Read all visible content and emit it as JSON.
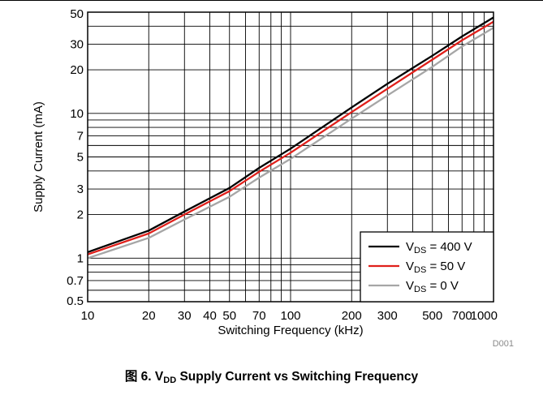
{
  "chart_data": {
    "type": "line",
    "title": "",
    "xlabel": "Switching Frequency (kHz)",
    "ylabel": "Supply Current (mA)",
    "x_scale": "log",
    "y_scale": "log",
    "xlim": [
      10,
      1000
    ],
    "ylim": [
      0.5,
      50
    ],
    "x_ticks": [
      10,
      20,
      30,
      40,
      50,
      70,
      100,
      200,
      300,
      500,
      700,
      1000
    ],
    "x_tick_labels": [
      "10",
      "20",
      "30",
      "40",
      "50",
      "70",
      "100",
      "200",
      "300",
      "500",
      "700",
      "1000"
    ],
    "y_ticks": [
      0.5,
      0.7,
      1,
      2,
      3,
      5,
      7,
      10,
      20,
      30,
      50
    ],
    "y_tick_labels": [
      "0.5",
      "0.7",
      "1",
      "2",
      "3",
      "5",
      "7",
      "10",
      "20",
      "30",
      "50"
    ],
    "grid": true,
    "legend_position": "bottom-right",
    "series": [
      {
        "name_main": "V",
        "name_sub": "DS",
        "name_rest": " = 400 V",
        "color": "#000000",
        "x": [
          10,
          20,
          30,
          50,
          70,
          100,
          200,
          300,
          500,
          700,
          1000
        ],
        "y": [
          1.1,
          1.55,
          2.1,
          3.05,
          4.2,
          5.7,
          11,
          16,
          25,
          34,
          46
        ]
      },
      {
        "name_main": "V",
        "name_sub": "DS",
        "name_rest": " = 50 V",
        "color": "#e0201b",
        "x": [
          10,
          20,
          30,
          50,
          70,
          100,
          200,
          300,
          500,
          700,
          1000
        ],
        "y": [
          1.06,
          1.48,
          2.0,
          2.9,
          3.95,
          5.35,
          10.2,
          14.8,
          23.5,
          32,
          43
        ]
      },
      {
        "name_main": "V",
        "name_sub": "DS",
        "name_rest": " = 0 V",
        "color": "#a6a6a6",
        "x": [
          10,
          20,
          30,
          50,
          70,
          100,
          200,
          300,
          500,
          700,
          1000
        ],
        "y": [
          1.0,
          1.38,
          1.85,
          2.65,
          3.6,
          4.85,
          9.2,
          13.3,
          21,
          29,
          39
        ]
      }
    ]
  },
  "figure_id": "D001",
  "caption": {
    "prefix": "图 6. V",
    "sub": "DD",
    "rest": " Supply Current vs Switching Frequency"
  }
}
